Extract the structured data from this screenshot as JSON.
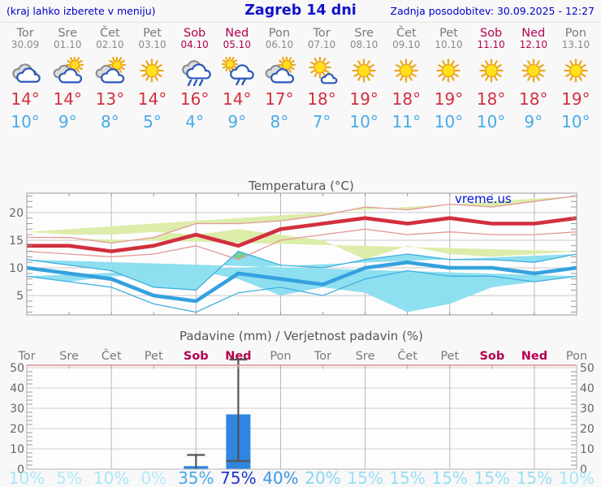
{
  "header": {
    "menu_hint": "(kraj lahko izberete v meniju)",
    "title": "Zagreb 14 dni",
    "last_update": "Zadnja posodobitev: 30.09.2025 - 12:27"
  },
  "watermark": "vreme.us",
  "colors": {
    "tmax_text": "#d2303f",
    "tmin_text": "#47abe8",
    "day_gray": "#7a7a7a",
    "day_weekend": "#b4004e",
    "header_blue": "#0000cc",
    "bar": "#2e86e0",
    "whisker": "#555555",
    "band_max_fill": "#dcedaa",
    "band_max_edge": "#e49898",
    "band_min_fill": "#8edff0",
    "band_min_edge": "#3fafe0",
    "band_overlap": "#7ccf92",
    "line_max": "#d22f3f",
    "line_min": "#35a1de"
  },
  "days": [
    {
      "name": "Tor",
      "date": "30.09",
      "weekend": false,
      "icon": "cloudy",
      "tmax": "14°",
      "tmin": "10°"
    },
    {
      "name": "Sre",
      "date": "01.10",
      "weekend": false,
      "icon": "sun-cloud",
      "tmax": "14°",
      "tmin": "9°"
    },
    {
      "name": "Čet",
      "date": "02.10",
      "weekend": false,
      "icon": "sun-cloud",
      "tmax": "13°",
      "tmin": "8°"
    },
    {
      "name": "Pet",
      "date": "03.10",
      "weekend": false,
      "icon": "sunny",
      "tmax": "14°",
      "tmin": "5°"
    },
    {
      "name": "Sob",
      "date": "04.10",
      "weekend": true,
      "icon": "rain",
      "tmax": "16°",
      "tmin": "4°"
    },
    {
      "name": "Ned",
      "date": "05.10",
      "weekend": true,
      "icon": "sun-rain",
      "tmax": "14°",
      "tmin": "9°"
    },
    {
      "name": "Pon",
      "date": "06.10",
      "weekend": false,
      "icon": "sun-cloud",
      "tmax": "17°",
      "tmin": "8°"
    },
    {
      "name": "Tor",
      "date": "07.10",
      "weekend": false,
      "icon": "sunny-cloud",
      "tmax": "18°",
      "tmin": "7°"
    },
    {
      "name": "Sre",
      "date": "08.10",
      "weekend": false,
      "icon": "sunny",
      "tmax": "19°",
      "tmin": "10°"
    },
    {
      "name": "Čet",
      "date": "09.10",
      "weekend": false,
      "icon": "sunny",
      "tmax": "18°",
      "tmin": "11°"
    },
    {
      "name": "Pet",
      "date": "10.10",
      "weekend": false,
      "icon": "sunny",
      "tmax": "19°",
      "tmin": "10°"
    },
    {
      "name": "Sob",
      "date": "11.10",
      "weekend": true,
      "icon": "sunny",
      "tmax": "18°",
      "tmin": "10°"
    },
    {
      "name": "Ned",
      "date": "12.10",
      "weekend": true,
      "icon": "sunny",
      "tmax": "18°",
      "tmin": "9°"
    },
    {
      "name": "Pon",
      "date": "13.10",
      "weekend": false,
      "icon": "sunny",
      "tmax": "19°",
      "tmin": "10°"
    }
  ],
  "chart_data": [
    {
      "type": "line",
      "title": "Temperatura (°C)",
      "x_labels": [
        "Tor",
        "Sre",
        "Čet",
        "Pet",
        "Sob",
        "Ned",
        "Pon",
        "Tor",
        "Sre",
        "Čet",
        "Pet",
        "Sob",
        "Ned",
        "Pon"
      ],
      "ylim": [
        1.5,
        23.5
      ],
      "yticks": [
        5,
        10,
        15,
        20
      ],
      "grid": true,
      "series": [
        {
          "name": "max temperatura",
          "values": [
            14,
            14,
            13,
            14,
            16,
            14,
            17,
            18,
            19,
            18,
            19,
            18,
            18,
            19
          ],
          "upper": [
            15.5,
            15.5,
            14.5,
            15.5,
            18,
            18,
            18.5,
            19.5,
            21,
            20.5,
            21.5,
            21,
            22,
            23
          ],
          "lower": [
            13,
            12.5,
            12,
            12.5,
            14,
            11.5,
            15,
            16,
            17,
            16,
            16.5,
            16,
            16,
            16.5
          ]
        },
        {
          "name": "min temperatura",
          "values": [
            10,
            9,
            8,
            5,
            4,
            9,
            8,
            7,
            10,
            11,
            10,
            10,
            9,
            10
          ],
          "upper": [
            11.5,
            10.5,
            9.5,
            6.5,
            6,
            13,
            10.5,
            10,
            11.5,
            12.5,
            11.5,
            11.5,
            11,
            12.5
          ],
          "lower": [
            8.5,
            7.5,
            6.5,
            3.5,
            2,
            5.5,
            6.5,
            5,
            8,
            9.5,
            8.5,
            8.5,
            7.5,
            8.5
          ]
        }
      ]
    },
    {
      "type": "bar",
      "title": "Padavine (mm) / Verjetnost padavin (%)",
      "x_labels": [
        "Tor",
        "Sre",
        "Čet",
        "Pet",
        "Sob",
        "Ned",
        "Pon",
        "Tor",
        "Sre",
        "Čet",
        "Pet",
        "Sob",
        "Ned",
        "Pon"
      ],
      "weekend_flags": [
        false,
        false,
        false,
        false,
        true,
        true,
        false,
        false,
        false,
        false,
        false,
        true,
        true,
        false
      ],
      "ylim": [
        0,
        51.2
      ],
      "yticks": [
        0,
        10,
        20,
        30,
        40,
        50
      ],
      "values": [
        0,
        0,
        0,
        0,
        1.5,
        27,
        0,
        0,
        0,
        0,
        0,
        0,
        0,
        0
      ],
      "whiskers": [
        {
          "index": 4,
          "low": 0,
          "high": 7
        },
        {
          "index": 5,
          "low": 4,
          "high": 55
        }
      ],
      "inner_marks": [
        {
          "index": 5,
          "value": 4
        }
      ],
      "probabilities": [
        {
          "label": "10%",
          "color": "#a9e6f8"
        },
        {
          "label": "5%",
          "color": "#b2e9f9"
        },
        {
          "label": "10%",
          "color": "#a9e6f8"
        },
        {
          "label": "0%",
          "color": "#b2e9f9"
        },
        {
          "label": "35%",
          "color": "#46a7ea"
        },
        {
          "label": "75%",
          "color": "#1c33cf"
        },
        {
          "label": "40%",
          "color": "#3e97e5"
        },
        {
          "label": "20%",
          "color": "#86d7f3"
        },
        {
          "label": "15%",
          "color": "#97def5"
        },
        {
          "label": "15%",
          "color": "#97def5"
        },
        {
          "label": "15%",
          "color": "#97def5"
        },
        {
          "label": "15%",
          "color": "#97def5"
        },
        {
          "label": "15%",
          "color": "#97def5"
        },
        {
          "label": "10%",
          "color": "#a9e6f8"
        }
      ]
    }
  ]
}
